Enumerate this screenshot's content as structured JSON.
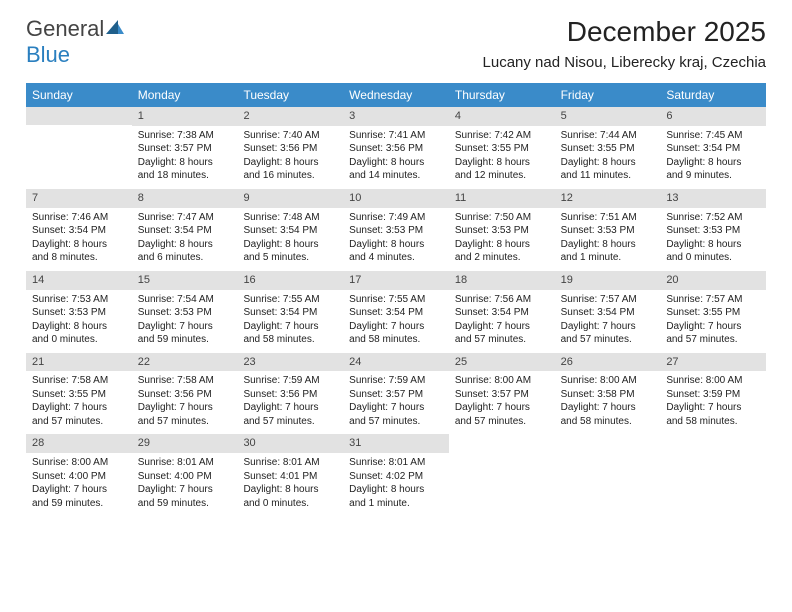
{
  "logo": {
    "word1": "General",
    "word2": "Blue"
  },
  "title": "December 2025",
  "location": "Lucany nad Nisou, Liberecky kraj, Czechia",
  "colors": {
    "header_bg": "#3a8bc9",
    "header_text": "#ffffff",
    "daynum_bg": "#e2e2e2",
    "body_text": "#222222",
    "background": "#ffffff",
    "logo_gray": "#444444",
    "logo_blue": "#2a7fbf"
  },
  "typography": {
    "title_fontsize": 28,
    "location_fontsize": 15,
    "header_fontsize": 12,
    "daynum_fontsize": 11,
    "cell_fontsize": 10
  },
  "day_headers": [
    "Sunday",
    "Monday",
    "Tuesday",
    "Wednesday",
    "Thursday",
    "Friday",
    "Saturday"
  ],
  "weeks": [
    [
      {
        "n": "",
        "sunrise": "",
        "sunset": "",
        "daylight": ""
      },
      {
        "n": "1",
        "sunrise": "Sunrise: 7:38 AM",
        "sunset": "Sunset: 3:57 PM",
        "daylight": "Daylight: 8 hours and 18 minutes."
      },
      {
        "n": "2",
        "sunrise": "Sunrise: 7:40 AM",
        "sunset": "Sunset: 3:56 PM",
        "daylight": "Daylight: 8 hours and 16 minutes."
      },
      {
        "n": "3",
        "sunrise": "Sunrise: 7:41 AM",
        "sunset": "Sunset: 3:56 PM",
        "daylight": "Daylight: 8 hours and 14 minutes."
      },
      {
        "n": "4",
        "sunrise": "Sunrise: 7:42 AM",
        "sunset": "Sunset: 3:55 PM",
        "daylight": "Daylight: 8 hours and 12 minutes."
      },
      {
        "n": "5",
        "sunrise": "Sunrise: 7:44 AM",
        "sunset": "Sunset: 3:55 PM",
        "daylight": "Daylight: 8 hours and 11 minutes."
      },
      {
        "n": "6",
        "sunrise": "Sunrise: 7:45 AM",
        "sunset": "Sunset: 3:54 PM",
        "daylight": "Daylight: 8 hours and 9 minutes."
      }
    ],
    [
      {
        "n": "7",
        "sunrise": "Sunrise: 7:46 AM",
        "sunset": "Sunset: 3:54 PM",
        "daylight": "Daylight: 8 hours and 8 minutes."
      },
      {
        "n": "8",
        "sunrise": "Sunrise: 7:47 AM",
        "sunset": "Sunset: 3:54 PM",
        "daylight": "Daylight: 8 hours and 6 minutes."
      },
      {
        "n": "9",
        "sunrise": "Sunrise: 7:48 AM",
        "sunset": "Sunset: 3:54 PM",
        "daylight": "Daylight: 8 hours and 5 minutes."
      },
      {
        "n": "10",
        "sunrise": "Sunrise: 7:49 AM",
        "sunset": "Sunset: 3:53 PM",
        "daylight": "Daylight: 8 hours and 4 minutes."
      },
      {
        "n": "11",
        "sunrise": "Sunrise: 7:50 AM",
        "sunset": "Sunset: 3:53 PM",
        "daylight": "Daylight: 8 hours and 2 minutes."
      },
      {
        "n": "12",
        "sunrise": "Sunrise: 7:51 AM",
        "sunset": "Sunset: 3:53 PM",
        "daylight": "Daylight: 8 hours and 1 minute."
      },
      {
        "n": "13",
        "sunrise": "Sunrise: 7:52 AM",
        "sunset": "Sunset: 3:53 PM",
        "daylight": "Daylight: 8 hours and 0 minutes."
      }
    ],
    [
      {
        "n": "14",
        "sunrise": "Sunrise: 7:53 AM",
        "sunset": "Sunset: 3:53 PM",
        "daylight": "Daylight: 8 hours and 0 minutes."
      },
      {
        "n": "15",
        "sunrise": "Sunrise: 7:54 AM",
        "sunset": "Sunset: 3:53 PM",
        "daylight": "Daylight: 7 hours and 59 minutes."
      },
      {
        "n": "16",
        "sunrise": "Sunrise: 7:55 AM",
        "sunset": "Sunset: 3:54 PM",
        "daylight": "Daylight: 7 hours and 58 minutes."
      },
      {
        "n": "17",
        "sunrise": "Sunrise: 7:55 AM",
        "sunset": "Sunset: 3:54 PM",
        "daylight": "Daylight: 7 hours and 58 minutes."
      },
      {
        "n": "18",
        "sunrise": "Sunrise: 7:56 AM",
        "sunset": "Sunset: 3:54 PM",
        "daylight": "Daylight: 7 hours and 57 minutes."
      },
      {
        "n": "19",
        "sunrise": "Sunrise: 7:57 AM",
        "sunset": "Sunset: 3:54 PM",
        "daylight": "Daylight: 7 hours and 57 minutes."
      },
      {
        "n": "20",
        "sunrise": "Sunrise: 7:57 AM",
        "sunset": "Sunset: 3:55 PM",
        "daylight": "Daylight: 7 hours and 57 minutes."
      }
    ],
    [
      {
        "n": "21",
        "sunrise": "Sunrise: 7:58 AM",
        "sunset": "Sunset: 3:55 PM",
        "daylight": "Daylight: 7 hours and 57 minutes."
      },
      {
        "n": "22",
        "sunrise": "Sunrise: 7:58 AM",
        "sunset": "Sunset: 3:56 PM",
        "daylight": "Daylight: 7 hours and 57 minutes."
      },
      {
        "n": "23",
        "sunrise": "Sunrise: 7:59 AM",
        "sunset": "Sunset: 3:56 PM",
        "daylight": "Daylight: 7 hours and 57 minutes."
      },
      {
        "n": "24",
        "sunrise": "Sunrise: 7:59 AM",
        "sunset": "Sunset: 3:57 PM",
        "daylight": "Daylight: 7 hours and 57 minutes."
      },
      {
        "n": "25",
        "sunrise": "Sunrise: 8:00 AM",
        "sunset": "Sunset: 3:57 PM",
        "daylight": "Daylight: 7 hours and 57 minutes."
      },
      {
        "n": "26",
        "sunrise": "Sunrise: 8:00 AM",
        "sunset": "Sunset: 3:58 PM",
        "daylight": "Daylight: 7 hours and 58 minutes."
      },
      {
        "n": "27",
        "sunrise": "Sunrise: 8:00 AM",
        "sunset": "Sunset: 3:59 PM",
        "daylight": "Daylight: 7 hours and 58 minutes."
      }
    ],
    [
      {
        "n": "28",
        "sunrise": "Sunrise: 8:00 AM",
        "sunset": "Sunset: 4:00 PM",
        "daylight": "Daylight: 7 hours and 59 minutes."
      },
      {
        "n": "29",
        "sunrise": "Sunrise: 8:01 AM",
        "sunset": "Sunset: 4:00 PM",
        "daylight": "Daylight: 7 hours and 59 minutes."
      },
      {
        "n": "30",
        "sunrise": "Sunrise: 8:01 AM",
        "sunset": "Sunset: 4:01 PM",
        "daylight": "Daylight: 8 hours and 0 minutes."
      },
      {
        "n": "31",
        "sunrise": "Sunrise: 8:01 AM",
        "sunset": "Sunset: 4:02 PM",
        "daylight": "Daylight: 8 hours and 1 minute."
      },
      {
        "n": "",
        "sunrise": "",
        "sunset": "",
        "daylight": ""
      },
      {
        "n": "",
        "sunrise": "",
        "sunset": "",
        "daylight": ""
      },
      {
        "n": "",
        "sunrise": "",
        "sunset": "",
        "daylight": ""
      }
    ]
  ]
}
